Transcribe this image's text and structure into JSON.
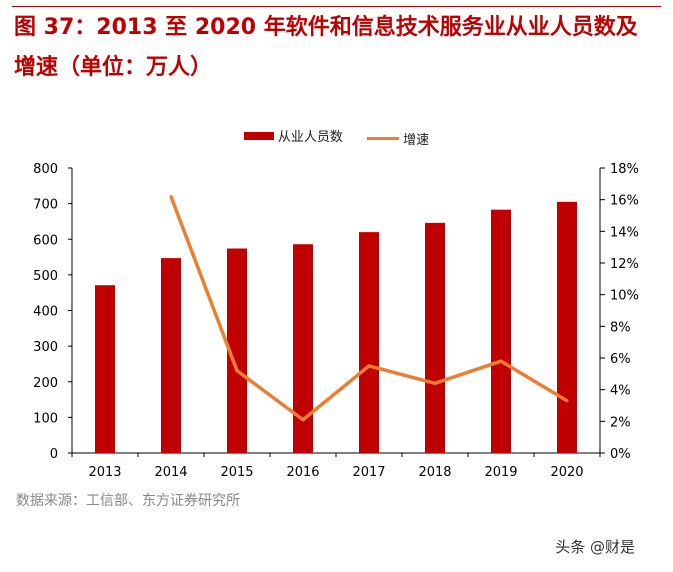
{
  "title": "图 37：2013 至 2020 年软件和信息技术服务业从业人员数及增速（单位：万人）",
  "source": "数据来源：工信部、东方证券研究所",
  "watermark": "头条 @财是",
  "colors": {
    "bar": "#c00000",
    "line": "#ed7d31",
    "title": "#c00000"
  },
  "chart_data": {
    "type": "bar+line",
    "categories": [
      "2013",
      "2014",
      "2015",
      "2016",
      "2017",
      "2018",
      "2019",
      "2020"
    ],
    "series": [
      {
        "name": "从业人员数",
        "type": "bar",
        "axis": "left",
        "values": [
          471,
          547,
          574,
          586,
          620,
          646,
          683,
          705
        ]
      },
      {
        "name": "增速",
        "type": "line",
        "axis": "right",
        "values": [
          null,
          16.2,
          5.2,
          2.1,
          5.5,
          4.4,
          5.8,
          3.3
        ]
      }
    ],
    "ylim_left": [
      0,
      800
    ],
    "yticks_left": [
      "0",
      "100",
      "200",
      "300",
      "400",
      "500",
      "600",
      "700",
      "800"
    ],
    "ylim_right": [
      0,
      18
    ],
    "yticks_right": [
      "0%",
      "2%",
      "4%",
      "6%",
      "8%",
      "10%",
      "12%",
      "14%",
      "16%",
      "18%"
    ],
    "legend": "top",
    "grid": false
  }
}
